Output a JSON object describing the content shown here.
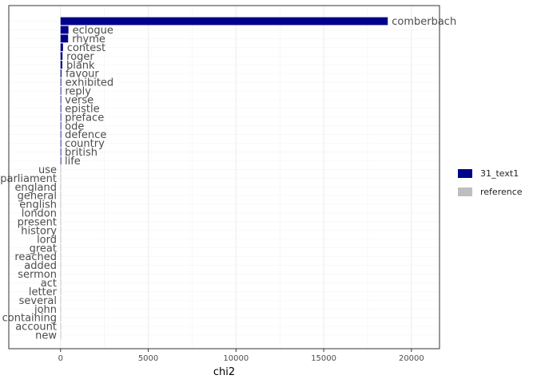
{
  "chart_data": {
    "type": "bar",
    "orientation": "horizontal",
    "xlabel": "chi2",
    "ylabel": "",
    "xlim": [
      -2950,
      21600
    ],
    "xticks": [
      0,
      5000,
      10000,
      15000,
      20000
    ],
    "grid": true,
    "legend_position": "right",
    "series": [
      {
        "name": "31_text1",
        "color": "#00008B"
      },
      {
        "name": "reference",
        "color": "#BEBEBE"
      }
    ],
    "bars": [
      {
        "label": "comberbach",
        "value": 18650,
        "series": "31_text1"
      },
      {
        "label": "eclogue",
        "value": 450,
        "series": "31_text1"
      },
      {
        "label": "rhyme",
        "value": 430,
        "series": "31_text1"
      },
      {
        "label": "contest",
        "value": 140,
        "series": "31_text1"
      },
      {
        "label": "roger",
        "value": 110,
        "series": "31_text1"
      },
      {
        "label": "blank",
        "value": 100,
        "series": "31_text1"
      },
      {
        "label": "favour",
        "value": 55,
        "series": "31_text1"
      },
      {
        "label": "exhibited",
        "value": 40,
        "series": "31_text1"
      },
      {
        "label": "reply",
        "value": 28,
        "series": "31_text1"
      },
      {
        "label": "verse",
        "value": 24,
        "series": "31_text1"
      },
      {
        "label": "epistle",
        "value": 22,
        "series": "31_text1"
      },
      {
        "label": "preface",
        "value": 20,
        "series": "31_text1"
      },
      {
        "label": "ode",
        "value": 18,
        "series": "31_text1"
      },
      {
        "label": "defence",
        "value": 16,
        "series": "31_text1"
      },
      {
        "label": "country",
        "value": 14,
        "series": "31_text1"
      },
      {
        "label": "british",
        "value": 12,
        "series": "31_text1"
      },
      {
        "label": "life",
        "value": 10,
        "series": "31_text1"
      },
      {
        "label": "use",
        "value": -4,
        "series": "reference"
      },
      {
        "label": "parliament",
        "value": -4,
        "series": "reference"
      },
      {
        "label": "england",
        "value": -4,
        "series": "reference"
      },
      {
        "label": "general",
        "value": -4,
        "series": "reference"
      },
      {
        "label": "english",
        "value": -4,
        "series": "reference"
      },
      {
        "label": "london",
        "value": -4,
        "series": "reference"
      },
      {
        "label": "present",
        "value": -4,
        "series": "reference"
      },
      {
        "label": "history",
        "value": -4,
        "series": "reference"
      },
      {
        "label": "lord",
        "value": -4,
        "series": "reference"
      },
      {
        "label": "great",
        "value": -4,
        "series": "reference"
      },
      {
        "label": "reached",
        "value": -4,
        "series": "reference"
      },
      {
        "label": "added",
        "value": -4,
        "series": "reference"
      },
      {
        "label": "sermon",
        "value": -4,
        "series": "reference"
      },
      {
        "label": "act",
        "value": -4,
        "series": "reference"
      },
      {
        "label": "letter",
        "value": -4,
        "series": "reference"
      },
      {
        "label": "several",
        "value": -4,
        "series": "reference"
      },
      {
        "label": "john",
        "value": -4,
        "series": "reference"
      },
      {
        "label": "containing",
        "value": -4,
        "series": "reference"
      },
      {
        "label": "account",
        "value": -4,
        "series": "reference"
      },
      {
        "label": "new",
        "value": -4,
        "series": "reference"
      }
    ]
  }
}
